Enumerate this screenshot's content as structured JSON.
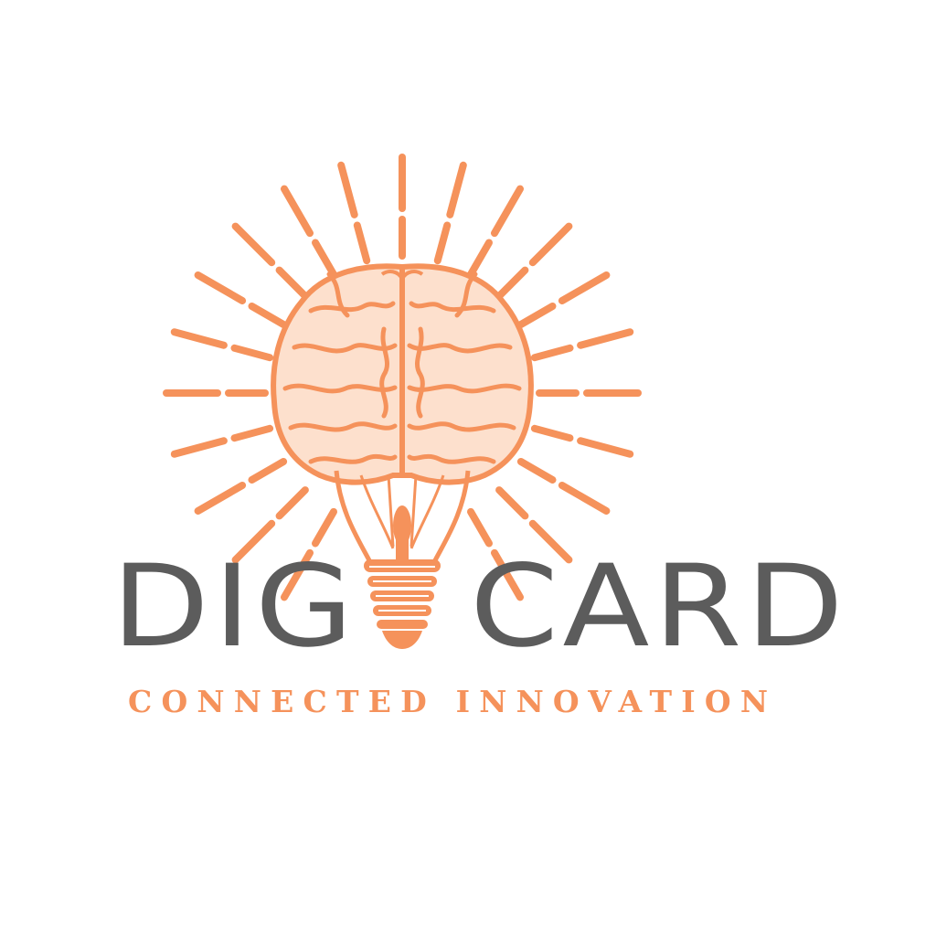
{
  "brand": {
    "name_part_1": "DIG",
    "name_part_2": "CARD",
    "tagline": "CONNECTED INNOVATION"
  },
  "icons": {
    "logo": "brain-lightbulb-icon",
    "rays": "light-rays-icon"
  },
  "colors": {
    "accent": "#f5925b",
    "text_dark": "#5c5c5c",
    "background": "#ffffff"
  }
}
